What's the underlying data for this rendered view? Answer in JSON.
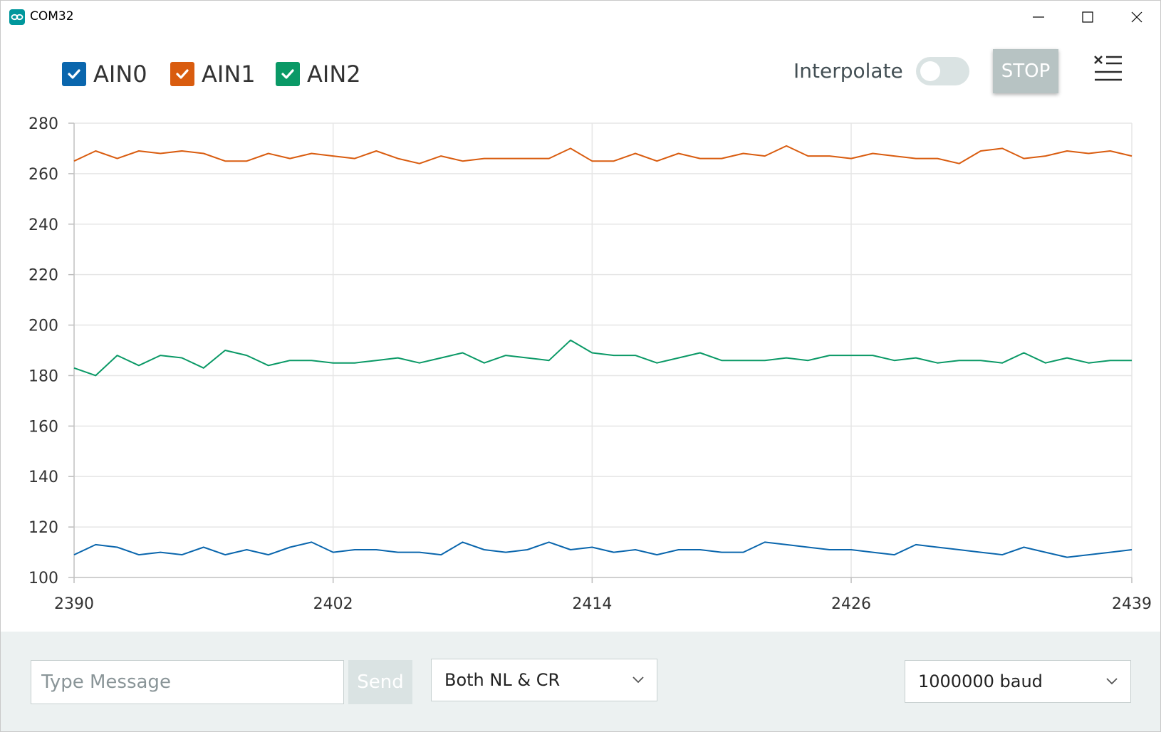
{
  "window": {
    "title": "COM32"
  },
  "legend": [
    {
      "label": "AIN0",
      "color": "#0a66ad",
      "checked": true
    },
    {
      "label": "AIN1",
      "color": "#d95c0f",
      "checked": true
    },
    {
      "label": "AIN2",
      "color": "#0a9966",
      "checked": true
    }
  ],
  "controls": {
    "interpolate_label": "Interpolate",
    "interpolate_on": false,
    "stop_label": "STOP",
    "clear_icon": "clear-list-icon"
  },
  "footer": {
    "message_placeholder": "Type Message",
    "send_label": "Send",
    "line_ending": "Both NL & CR",
    "baud": "1000000 baud"
  },
  "chart_data": {
    "type": "line",
    "title": "",
    "xlabel": "",
    "ylabel": "",
    "xlim": [
      2390,
      2439
    ],
    "ylim": [
      100,
      280
    ],
    "xticks": [
      2390,
      2402,
      2414,
      2426,
      2439
    ],
    "yticks": [
      100,
      120,
      140,
      160,
      180,
      200,
      220,
      240,
      260,
      280
    ],
    "grid": true,
    "legend_position": "top-left",
    "x": [
      2390,
      2391,
      2392,
      2393,
      2394,
      2395,
      2396,
      2397,
      2398,
      2399,
      2400,
      2401,
      2402,
      2403,
      2404,
      2405,
      2406,
      2407,
      2408,
      2409,
      2410,
      2411,
      2412,
      2413,
      2414,
      2415,
      2416,
      2417,
      2418,
      2419,
      2420,
      2421,
      2422,
      2423,
      2424,
      2425,
      2426,
      2427,
      2428,
      2429,
      2430,
      2431,
      2432,
      2433,
      2434,
      2435,
      2436,
      2437,
      2438,
      2439
    ],
    "series": [
      {
        "name": "AIN0",
        "color": "#0a66ad",
        "values": [
          109,
          113,
          112,
          109,
          110,
          109,
          112,
          109,
          111,
          109,
          112,
          114,
          110,
          111,
          111,
          110,
          110,
          109,
          114,
          111,
          110,
          111,
          114,
          111,
          112,
          110,
          111,
          109,
          111,
          111,
          110,
          110,
          114,
          113,
          112,
          111,
          111,
          110,
          109,
          113,
          112,
          111,
          110,
          109,
          112,
          110,
          108,
          109,
          110,
          111
        ]
      },
      {
        "name": "AIN1",
        "color": "#d95c0f",
        "values": [
          265,
          269,
          266,
          269,
          268,
          269,
          268,
          265,
          265,
          268,
          266,
          268,
          267,
          266,
          269,
          266,
          264,
          267,
          265,
          266,
          266,
          266,
          266,
          270,
          265,
          265,
          268,
          265,
          268,
          266,
          266,
          268,
          267,
          271,
          267,
          267,
          266,
          268,
          267,
          266,
          266,
          264,
          269,
          270,
          266,
          267,
          269,
          268,
          269,
          267
        ]
      },
      {
        "name": "AIN2",
        "color": "#0a9966",
        "values": [
          183,
          180,
          188,
          184,
          188,
          187,
          183,
          190,
          188,
          184,
          186,
          186,
          185,
          185,
          186,
          187,
          185,
          187,
          189,
          185,
          188,
          187,
          186,
          194,
          189,
          188,
          188,
          185,
          187,
          189,
          186,
          186,
          186,
          187,
          186,
          188,
          188,
          188,
          186,
          187,
          185,
          186,
          186,
          185,
          189,
          185,
          187,
          185,
          186,
          186
        ]
      }
    ]
  }
}
